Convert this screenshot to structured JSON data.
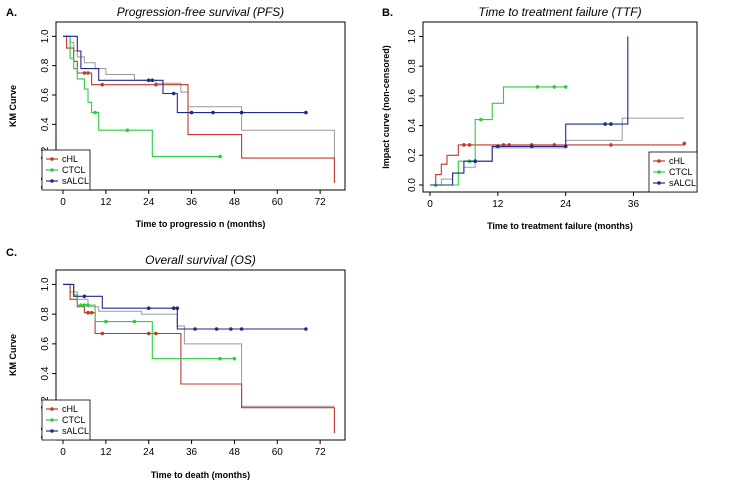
{
  "figure_name": "km-figure",
  "colors": {
    "cHL": "#c0392b",
    "CTCL": "#2ecc40",
    "sALCL": "#1f2a8a",
    "pooled": "#9a9a9a"
  },
  "chart_data": [
    {
      "type": "line",
      "panel": "A.",
      "title": "Progression-free survival (PFS)",
      "xlabel": "Time to progressio n (months)",
      "ylabel": "KM Curve",
      "xlim": [
        0,
        77
      ],
      "ylim": [
        0,
        1.05
      ],
      "xticks": [
        "0",
        "12",
        "24",
        "36",
        "48",
        "60",
        "72"
      ],
      "yticks": [
        "0.0",
        "0.2",
        "0.4",
        "0.6",
        "0.8",
        "1.0"
      ],
      "legend_position": "bottom-left",
      "legend": [
        "cHL",
        "CTCL",
        "sALCL"
      ],
      "series": [
        {
          "name": "pooled",
          "legend": false,
          "steps": [
            [
              0,
              1.0
            ],
            [
              2,
              0.96
            ],
            [
              3,
              0.9
            ],
            [
              4,
              0.86
            ],
            [
              6,
              0.82
            ],
            [
              9,
              0.78
            ],
            [
              12,
              0.74
            ],
            [
              20,
              0.7
            ],
            [
              26,
              0.68
            ],
            [
              33,
              0.62
            ],
            [
              35,
              0.52
            ],
            [
              50,
              0.36
            ],
            [
              76,
              0.16
            ]
          ],
          "censors": []
        },
        {
          "name": "cHL",
          "steps": [
            [
              0,
              1.0
            ],
            [
              1,
              0.92
            ],
            [
              3,
              0.83
            ],
            [
              4,
              0.75
            ],
            [
              8,
              0.67
            ],
            [
              35,
              0.33
            ],
            [
              50,
              0.17
            ],
            [
              76,
              0.0
            ]
          ],
          "censors": [
            [
              6,
              0.75
            ],
            [
              7,
              0.75
            ],
            [
              11,
              0.67
            ],
            [
              26,
              0.67
            ]
          ]
        },
        {
          "name": "CTCL",
          "steps": [
            [
              0,
              1.0
            ],
            [
              2,
              0.85
            ],
            [
              3,
              0.78
            ],
            [
              4,
              0.71
            ],
            [
              6,
              0.64
            ],
            [
              7,
              0.55
            ],
            [
              8,
              0.48
            ],
            [
              10,
              0.36
            ],
            [
              25,
              0.18
            ],
            [
              44,
              0.18
            ]
          ],
          "censors": [
            [
              9,
              0.48
            ],
            [
              18,
              0.36
            ],
            [
              44,
              0.18
            ]
          ]
        },
        {
          "name": "sALCL",
          "steps": [
            [
              0,
              1.0
            ],
            [
              4,
              0.9
            ],
            [
              5,
              0.78
            ],
            [
              10,
              0.7
            ],
            [
              28,
              0.61
            ],
            [
              32,
              0.48
            ],
            [
              68,
              0.48
            ]
          ],
          "censors": [
            [
              24,
              0.7
            ],
            [
              25,
              0.7
            ],
            [
              31,
              0.61
            ],
            [
              36,
              0.48
            ],
            [
              42,
              0.48
            ],
            [
              50,
              0.48
            ],
            [
              68,
              0.48
            ]
          ]
        }
      ]
    },
    {
      "type": "line",
      "panel": "B.",
      "title": "Time to treatment failure (TTF)",
      "xlabel": "Time to treatment failure (months)",
      "ylabel": "Impact curve (non-censored)",
      "xlim": [
        0,
        46
      ],
      "ylim": [
        0,
        1.05
      ],
      "xticks": [
        "0",
        "12",
        "24",
        "36"
      ],
      "yticks": [
        "0.0",
        "0.2",
        "0.4",
        "0.6",
        "0.8",
        "1.0"
      ],
      "legend_position": "bottom-right",
      "legend": [
        "cHL",
        "CTCL",
        "sALCL"
      ],
      "series": [
        {
          "name": "pooled",
          "legend": false,
          "steps": [
            [
              0,
              0.0
            ],
            [
              2,
              0.04
            ],
            [
              4,
              0.08
            ],
            [
              6,
              0.12
            ],
            [
              8,
              0.16
            ],
            [
              11,
              0.25
            ],
            [
              24,
              0.3
            ],
            [
              34,
              0.45
            ],
            [
              45,
              0.45
            ]
          ],
          "censors": []
        },
        {
          "name": "cHL",
          "steps": [
            [
              0,
              0.0
            ],
            [
              1,
              0.07
            ],
            [
              2,
              0.14
            ],
            [
              3,
              0.2
            ],
            [
              5,
              0.27
            ],
            [
              45,
              0.28
            ]
          ],
          "censors": [
            [
              6,
              0.27
            ],
            [
              7,
              0.27
            ],
            [
              13,
              0.27
            ],
            [
              14,
              0.27
            ],
            [
              18,
              0.27
            ],
            [
              22,
              0.27
            ],
            [
              32,
              0.27
            ],
            [
              45,
              0.28
            ]
          ]
        },
        {
          "name": "CTCL",
          "steps": [
            [
              0,
              0.0
            ],
            [
              5,
              0.16
            ],
            [
              8,
              0.44
            ],
            [
              11,
              0.55
            ],
            [
              13,
              0.66
            ],
            [
              24,
              0.66
            ]
          ],
          "censors": [
            [
              1,
              0.0
            ],
            [
              7,
              0.16
            ],
            [
              9,
              0.44
            ],
            [
              19,
              0.66
            ],
            [
              22,
              0.66
            ],
            [
              24,
              0.66
            ]
          ]
        },
        {
          "name": "sALCL",
          "steps": [
            [
              0,
              0.0
            ],
            [
              4,
              0.08
            ],
            [
              6,
              0.16
            ],
            [
              11,
              0.26
            ],
            [
              24,
              0.41
            ],
            [
              35,
              1.0
            ]
          ],
          "censors": [
            [
              8,
              0.16
            ],
            [
              12,
              0.26
            ],
            [
              18,
              0.26
            ],
            [
              24,
              0.26
            ],
            [
              31,
              0.41
            ],
            [
              32,
              0.41
            ]
          ]
        }
      ]
    },
    {
      "type": "line",
      "panel": "C.",
      "title": "Overall survival (OS)",
      "xlabel": "Time to death (months)",
      "ylabel": "KM Curve",
      "xlim": [
        0,
        77
      ],
      "ylim": [
        0,
        1.05
      ],
      "xticks": [
        "0",
        "12",
        "24",
        "36",
        "48",
        "60",
        "72"
      ],
      "yticks": [
        "0.0",
        "0.2",
        "0.4",
        "0.6",
        "0.8",
        "1.0"
      ],
      "legend_position": "bottom-left",
      "legend": [
        "cHL",
        "CTCL",
        "sALCL"
      ],
      "series": [
        {
          "name": "pooled",
          "legend": false,
          "steps": [
            [
              0,
              1.0
            ],
            [
              2,
              0.95
            ],
            [
              4,
              0.9
            ],
            [
              7,
              0.85
            ],
            [
              10,
              0.82
            ],
            [
              22,
              0.8
            ],
            [
              32,
              0.72
            ],
            [
              34,
              0.6
            ],
            [
              50,
              0.18
            ],
            [
              76,
              0.18
            ]
          ],
          "censors": []
        },
        {
          "name": "cHL",
          "steps": [
            [
              0,
              1.0
            ],
            [
              2,
              0.9
            ],
            [
              4,
              0.85
            ],
            [
              6,
              0.81
            ],
            [
              9,
              0.67
            ],
            [
              33,
              0.33
            ],
            [
              50,
              0.17
            ],
            [
              76,
              0.0
            ]
          ],
          "censors": [
            [
              7,
              0.81
            ],
            [
              8,
              0.81
            ],
            [
              11,
              0.67
            ],
            [
              24,
              0.67
            ],
            [
              26,
              0.67
            ]
          ]
        },
        {
          "name": "CTCL",
          "steps": [
            [
              0,
              1.0
            ],
            [
              3,
              0.93
            ],
            [
              4,
              0.86
            ],
            [
              9,
              0.75
            ],
            [
              25,
              0.5
            ],
            [
              48,
              0.5
            ]
          ],
          "censors": [
            [
              5,
              0.86
            ],
            [
              6,
              0.86
            ],
            [
              7,
              0.86
            ],
            [
              12,
              0.75
            ],
            [
              20,
              0.75
            ],
            [
              44,
              0.5
            ],
            [
              48,
              0.5
            ]
          ]
        },
        {
          "name": "sALCL",
          "steps": [
            [
              0,
              1.0
            ],
            [
              3,
              0.92
            ],
            [
              11,
              0.84
            ],
            [
              32,
              0.7
            ],
            [
              68,
              0.7
            ]
          ],
          "censors": [
            [
              6,
              0.92
            ],
            [
              24,
              0.84
            ],
            [
              31,
              0.84
            ],
            [
              32,
              0.84
            ],
            [
              37,
              0.7
            ],
            [
              43,
              0.7
            ],
            [
              47,
              0.7
            ],
            [
              50,
              0.7
            ],
            [
              68,
              0.7
            ]
          ]
        }
      ]
    }
  ]
}
